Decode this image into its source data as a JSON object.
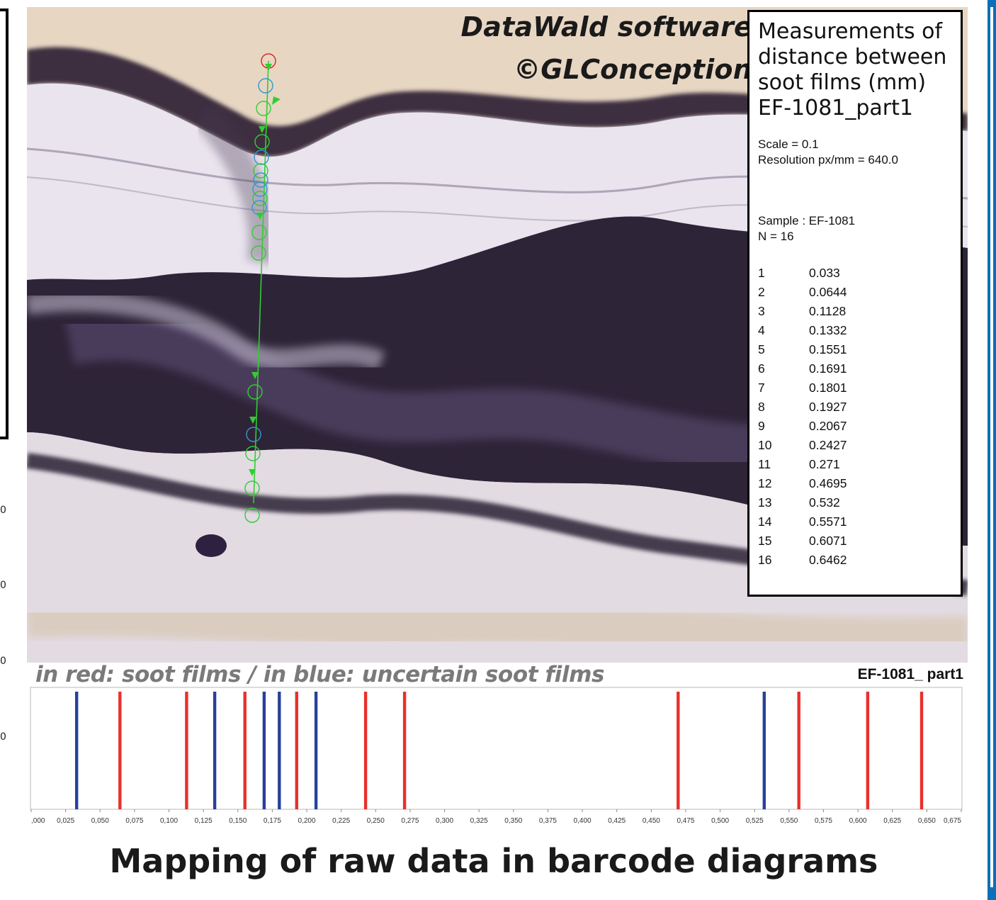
{
  "watermark": {
    "line1": "DataWald software",
    "line2": "©GLConception"
  },
  "info_box": {
    "title_lines": [
      "Measurements of",
      "distance between",
      "soot films (mm)",
      "EF-1081_part1"
    ],
    "scale": "Scale = 0.1",
    "resolution": "Resolution px/mm = 640.0",
    "sample": "Sample : EF-1081",
    "n": "N = 16",
    "measurements": [
      {
        "idx": "1",
        "value": "0.033"
      },
      {
        "idx": "2",
        "value": "0.0644"
      },
      {
        "idx": "3",
        "value": "0.1128"
      },
      {
        "idx": "4",
        "value": "0.1332"
      },
      {
        "idx": "5",
        "value": "0.1551"
      },
      {
        "idx": "6",
        "value": "0.1691"
      },
      {
        "idx": "7",
        "value": "0.1801"
      },
      {
        "idx": "8",
        "value": "0.1927"
      },
      {
        "idx": "9",
        "value": "0.2067"
      },
      {
        "idx": "10",
        "value": "0.2427"
      },
      {
        "idx": "11",
        "value": "0.271"
      },
      {
        "idx": "12",
        "value": "0.4695"
      },
      {
        "idx": "13",
        "value": "0.532"
      },
      {
        "idx": "14",
        "value": "0.5571"
      },
      {
        "idx": "15",
        "value": "0.6071"
      },
      {
        "idx": "16",
        "value": "0.6462"
      }
    ]
  },
  "legend_text": "in red: soot films / in blue: uncertain soot films",
  "part_label": "EF-1081_ part1",
  "bottom_title": "Mapping of raw data in barcode diagrams",
  "left_ticks": [
    "0",
    "0",
    "0",
    "0"
  ],
  "colors": {
    "certain": "#e8302b",
    "uncertain": "#27419a",
    "measure_green": "#33cc33",
    "measure_blue": "#3399cc",
    "measure_red": "#dd2222",
    "side_bar": "#0d6fb8"
  },
  "chart_data": {
    "type": "barcode",
    "title": "EF-1081_ part1",
    "xlabel": "",
    "ylabel": "",
    "xlim": [
      0.0,
      0.675
    ],
    "tick_labels": [
      ",000",
      "0,025",
      "0,050",
      "0,075",
      "0,100",
      "0,125",
      "0,150",
      "0,175",
      "0,200",
      "0,225",
      "0,250",
      "0,275",
      "0,300",
      "0,325",
      "0,350",
      "0,375",
      "0,400",
      "0,425",
      "0,450",
      "0,475",
      "0,500",
      "0,525",
      "0,550",
      "0,575",
      "0,600",
      "0,625",
      "0,650",
      "0,675"
    ],
    "tick_values": [
      0.0,
      0.025,
      0.05,
      0.075,
      0.1,
      0.125,
      0.15,
      0.175,
      0.2,
      0.225,
      0.25,
      0.275,
      0.3,
      0.325,
      0.35,
      0.375,
      0.4,
      0.425,
      0.45,
      0.475,
      0.5,
      0.525,
      0.55,
      0.575,
      0.6,
      0.625,
      0.65,
      0.675
    ],
    "series": [
      {
        "name": "soot films",
        "color": "#e8302b",
        "values": [
          0.0644,
          0.1128,
          0.1551,
          0.1927,
          0.2427,
          0.271,
          0.4695,
          0.5571,
          0.6071,
          0.6462
        ]
      },
      {
        "name": "uncertain soot films",
        "color": "#27419a",
        "values": [
          0.033,
          0.1332,
          0.1691,
          0.1801,
          0.2067,
          0.532
        ]
      }
    ],
    "grid": false,
    "legend": "top-left"
  }
}
